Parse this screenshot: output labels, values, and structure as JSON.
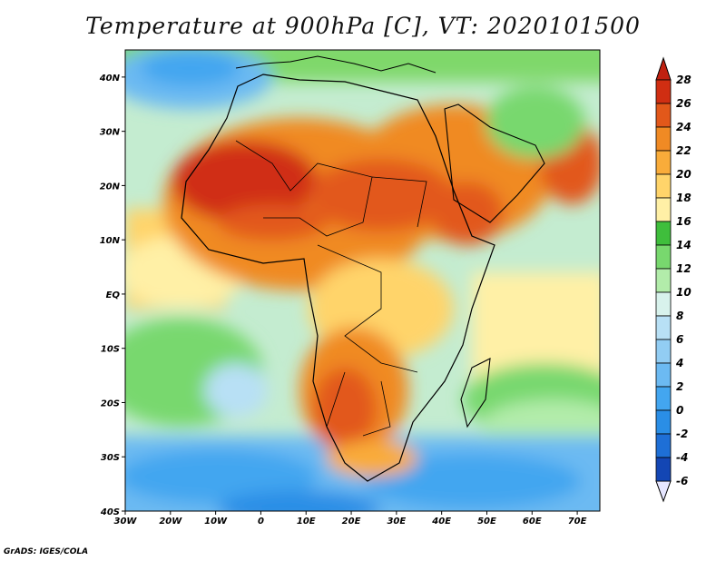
{
  "title": "Temperature at 900hPa [C], VT: 2020101500",
  "credit": "GrADS: IGES/COLA",
  "map": {
    "variable": "Temperature",
    "level": "900hPa",
    "units": "C",
    "valid_time": "2020101500",
    "lon_range": [
      -30,
      75
    ],
    "lat_range": [
      -40,
      45
    ],
    "lon_ticks": [
      {
        "value": -30,
        "label": "30W"
      },
      {
        "value": -20,
        "label": "20W"
      },
      {
        "value": -10,
        "label": "10W"
      },
      {
        "value": 0,
        "label": "0"
      },
      {
        "value": 10,
        "label": "10E"
      },
      {
        "value": 20,
        "label": "20E"
      },
      {
        "value": 30,
        "label": "30E"
      },
      {
        "value": 40,
        "label": "40E"
      },
      {
        "value": 50,
        "label": "50E"
      },
      {
        "value": 60,
        "label": "60E"
      },
      {
        "value": 70,
        "label": "70E"
      }
    ],
    "lat_ticks": [
      {
        "value": 40,
        "label": "40N"
      },
      {
        "value": 30,
        "label": "30N"
      },
      {
        "value": 20,
        "label": "20N"
      },
      {
        "value": 10,
        "label": "10N"
      },
      {
        "value": 0,
        "label": "EQ"
      },
      {
        "value": -10,
        "label": "10S"
      },
      {
        "value": -20,
        "label": "20S"
      },
      {
        "value": -30,
        "label": "30S"
      },
      {
        "value": -40,
        "label": "40S"
      }
    ]
  },
  "colorbar": {
    "levels": [
      {
        "value": -6,
        "label": "-6",
        "color": "#0d1a78"
      },
      {
        "value": -4,
        "label": "-4",
        "color": "#1346b4"
      },
      {
        "value": -2,
        "label": "-2",
        "color": "#1e6fd6"
      },
      {
        "value": 0,
        "label": "0",
        "color": "#2a8ee6"
      },
      {
        "value": 2,
        "label": "2",
        "color": "#43a6f0"
      },
      {
        "value": 4,
        "label": "4",
        "color": "#6cbaf2"
      },
      {
        "value": 6,
        "label": "6",
        "color": "#92cdf3"
      },
      {
        "value": 8,
        "label": "8",
        "color": "#b8e0f5"
      },
      {
        "value": 10,
        "label": "10",
        "color": "#d8f2ec"
      },
      {
        "value": 12,
        "label": "12",
        "color": "#b2ecaa"
      },
      {
        "value": 14,
        "label": "14",
        "color": "#78d86e"
      },
      {
        "value": 16,
        "label": "16",
        "color": "#3fbe3c"
      },
      {
        "value": 18,
        "label": "18",
        "color": "#fff0a6"
      },
      {
        "value": 20,
        "label": "20",
        "color": "#ffd46a"
      },
      {
        "value": 22,
        "label": "22",
        "color": "#f9ac3a"
      },
      {
        "value": 24,
        "label": "24",
        "color": "#f08a24"
      },
      {
        "value": 26,
        "label": "26",
        "color": "#e2581a"
      },
      {
        "value": 28,
        "label": "28",
        "color": "#d02e12"
      }
    ],
    "below_color": "#e6e6ff",
    "above_color": "#c02010"
  }
}
